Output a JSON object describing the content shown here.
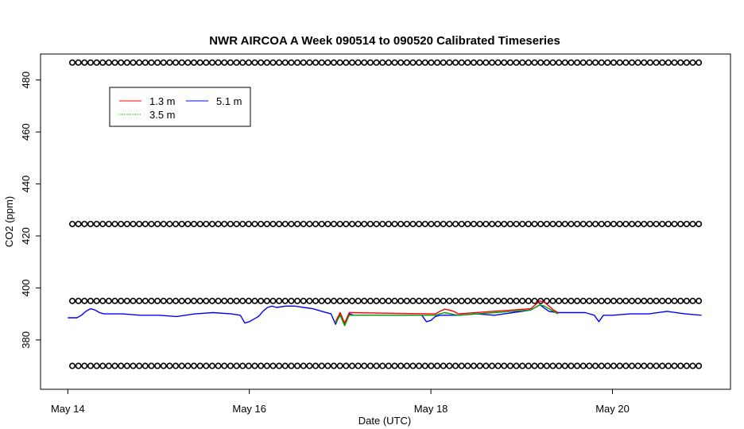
{
  "chart_data": {
    "type": "line",
    "title": "NWR AIRCOA A  Week 090514 to 090520  Calibrated Timeseries",
    "xlabel": "Date (UTC)",
    "ylabel": "CO2 (ppm)",
    "xlim": [
      -0.3,
      7.3
    ],
    "ylim": [
      361,
      490
    ],
    "x_ticks": [
      {
        "value": 0,
        "label": "May 14"
      },
      {
        "value": 2,
        "label": "May 16"
      },
      {
        "value": 4,
        "label": "May 18"
      },
      {
        "value": 6,
        "label": "May 20"
      }
    ],
    "y_ticks": [
      {
        "value": 380,
        "label": "380"
      },
      {
        "value": 400,
        "label": "400"
      },
      {
        "value": 420,
        "label": "420"
      },
      {
        "value": 440,
        "label": "440"
      },
      {
        "value": 460,
        "label": "460"
      },
      {
        "value": 480,
        "label": "480"
      }
    ],
    "legend": {
      "placement": "top-left",
      "entries": [
        {
          "label": "1.3 m",
          "color": "#ff0000"
        },
        {
          "label": "5.1 m",
          "color": "#0000ff"
        },
        {
          "label": "3.5 m",
          "color": "#00a000"
        }
      ]
    },
    "reference_points": {
      "marker": "open-circle",
      "color": "#000000",
      "levels": [
        486.7,
        424.6,
        395,
        370
      ],
      "x_start": 0.05,
      "x_end": 6.97,
      "spacing": 0.067
    },
    "series": [
      {
        "name": "5.1 m",
        "color": "#0000ff",
        "x": [
          0.0,
          0.1,
          0.15,
          0.2,
          0.25,
          0.3,
          0.35,
          0.4,
          0.5,
          0.6,
          0.8,
          1.0,
          1.2,
          1.4,
          1.6,
          1.8,
          1.9,
          1.95,
          2.0,
          2.05,
          2.1,
          2.15,
          2.2,
          2.25,
          2.3,
          2.4,
          2.5,
          2.6,
          2.7,
          2.8,
          2.9,
          2.95,
          3.0,
          3.05,
          3.1,
          3.15,
          3.2,
          3.3,
          3.5,
          3.7,
          3.9,
          3.95,
          4.0,
          4.05,
          4.1,
          4.2,
          4.3,
          4.5,
          4.7,
          4.9,
          5.0,
          5.1,
          5.2,
          5.3,
          5.4,
          5.5,
          5.7,
          5.8,
          5.85,
          5.9,
          6.0,
          6.2,
          6.4,
          6.6,
          6.8,
          6.98
        ],
        "y": [
          388.5,
          388.5,
          389.5,
          391,
          392,
          391.5,
          390.5,
          390,
          390,
          390,
          389.5,
          389.5,
          389,
          390,
          390.5,
          390,
          389.5,
          386.5,
          387,
          388,
          389,
          391,
          392.5,
          393,
          392.5,
          393,
          393,
          392.5,
          392,
          391,
          390,
          386,
          390,
          385.5,
          390,
          389.5,
          389.5,
          389.5,
          389.5,
          389.5,
          389.5,
          387,
          387.5,
          389,
          389.5,
          389.5,
          389.5,
          390,
          389.5,
          390.5,
          391,
          391.5,
          393.5,
          391,
          390.5,
          390.5,
          390.5,
          389.5,
          387,
          389.5,
          389.5,
          390,
          390,
          391,
          390,
          389.5
        ]
      },
      {
        "name": "1.3 m",
        "color": "#ff0000",
        "x": [
          2.95,
          3.0,
          3.05,
          3.1,
          4.05,
          4.1,
          4.15,
          4.2,
          4.25,
          4.3,
          5.1,
          5.15,
          5.2,
          5.25,
          5.3,
          5.35,
          5.4
        ],
        "y": [
          387,
          390.5,
          386.5,
          390.5,
          390,
          391,
          391.8,
          391.5,
          391,
          390,
          392,
          393.5,
          395,
          394.5,
          393,
          391.5,
          390.5
        ]
      },
      {
        "name": "3.5 m",
        "color": "#00a000",
        "x": [
          2.95,
          3.0,
          3.05,
          3.1,
          4.05,
          4.1,
          4.15,
          4.2,
          4.25,
          4.3,
          5.1,
          5.15,
          5.2,
          5.25,
          5.3,
          5.35,
          5.4
        ],
        "y": [
          386.5,
          389.5,
          385.5,
          389.5,
          389.5,
          390,
          390.5,
          390.2,
          389.8,
          389.5,
          391.5,
          392.5,
          393.5,
          393,
          392,
          391,
          390
        ]
      }
    ]
  }
}
